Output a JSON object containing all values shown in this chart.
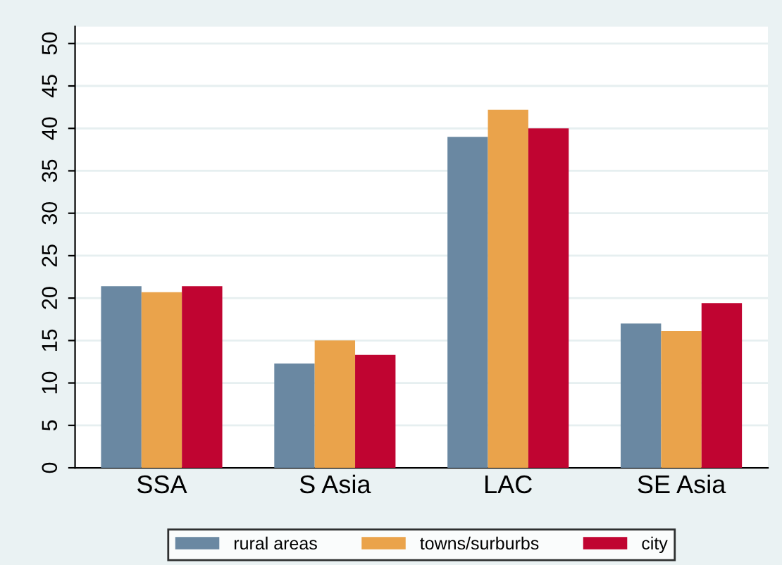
{
  "chart_data": {
    "type": "bar",
    "categories": [
      "SSA",
      "S Asia",
      "LAC",
      "SE Asia"
    ],
    "series": [
      {
        "name": "rural areas",
        "color": "#6a88a2",
        "values": [
          21.4,
          12.3,
          39.0,
          17.0
        ]
      },
      {
        "name": "towns/surburbs",
        "color": "#eaa34b",
        "values": [
          20.7,
          15.0,
          42.2,
          16.1
        ]
      },
      {
        "name": "city",
        "color": "#c00431",
        "values": [
          21.4,
          13.3,
          40.0,
          19.4
        ]
      }
    ],
    "ylim": [
      0,
      52
    ],
    "yticks": [
      0,
      5,
      10,
      15,
      20,
      25,
      30,
      35,
      40,
      45,
      50
    ],
    "grid": "y",
    "legend": "bottom"
  }
}
